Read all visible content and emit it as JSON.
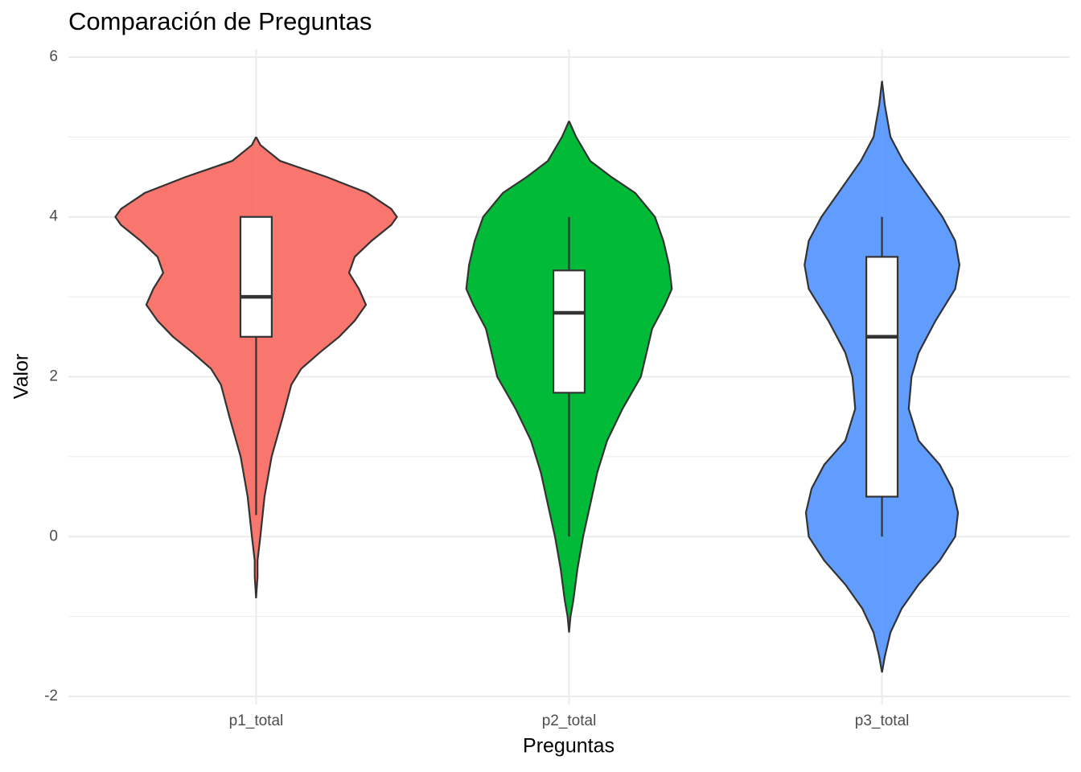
{
  "chart_data": {
    "type": "violin",
    "title": "Comparación de Preguntas",
    "x_label": "Preguntas",
    "y_label": "Valor",
    "categories": [
      "p1_total",
      "p2_total",
      "p3_total"
    ],
    "ylim": [
      -2.1,
      6.1
    ],
    "yticks": [
      -2,
      0,
      2,
      4,
      6
    ],
    "y_minor_grid": [
      -1,
      1,
      3,
      5
    ],
    "grid": true,
    "groups": [
      {
        "color": "#F8766D",
        "density_y": [
          5.0,
          4.9,
          4.7,
          4.5,
          4.3,
          4.1,
          4.0,
          3.9,
          3.7,
          3.5,
          3.3,
          3.1,
          2.9,
          2.7,
          2.5,
          2.3,
          2.1,
          1.9,
          1.5,
          1.0,
          0.5,
          0,
          -0.3,
          -0.5,
          -0.77
        ],
        "density": [
          0,
          0.03,
          0.17,
          0.5,
          0.79,
          0.96,
          1,
          0.96,
          0.82,
          0.7,
          0.66,
          0.73,
          0.78,
          0.7,
          0.59,
          0.45,
          0.32,
          0.25,
          0.19,
          0.11,
          0.06,
          0.03,
          0.01,
          0.01,
          0
        ],
        "box": {
          "min": 0.27,
          "q1": 2.5,
          "median": 3,
          "q3": 4,
          "max": 4
        }
      },
      {
        "color": "#00BA38",
        "density_y": [
          5.2,
          5.0,
          4.7,
          4.5,
          4.3,
          4.0,
          3.7,
          3.4,
          3.1,
          2.9,
          2.6,
          2.3,
          2.0,
          1.6,
          1.2,
          0.8,
          0.4,
          0,
          -0.4,
          -0.8,
          -1.0,
          -1.2
        ],
        "density": [
          0,
          0.05,
          0.15,
          0.3,
          0.47,
          0.61,
          0.67,
          0.71,
          0.73,
          0.68,
          0.59,
          0.55,
          0.51,
          0.38,
          0.27,
          0.2,
          0.15,
          0.1,
          0.06,
          0.03,
          0.01,
          0
        ],
        "box": {
          "min": 0,
          "q1": 1.8,
          "median": 2.8,
          "q3": 3.33,
          "max": 4
        }
      },
      {
        "color": "#619CFF",
        "density_y": [
          5.7,
          5.4,
          5.0,
          4.7,
          4.4,
          4.0,
          3.7,
          3.4,
          3.1,
          2.7,
          2.3,
          2.0,
          1.6,
          1.2,
          0.9,
          0.6,
          0.3,
          0,
          -0.3,
          -0.6,
          -0.9,
          -1.2,
          -1.5,
          -1.7
        ],
        "density": [
          0,
          0.02,
          0.06,
          0.15,
          0.27,
          0.43,
          0.52,
          0.55,
          0.52,
          0.38,
          0.26,
          0.21,
          0.19,
          0.26,
          0.41,
          0.5,
          0.54,
          0.52,
          0.41,
          0.26,
          0.14,
          0.06,
          0.02,
          0
        ],
        "box": {
          "min": 0,
          "q1": 0.5,
          "median": 2.5,
          "q3": 3.5,
          "max": 4
        }
      }
    ]
  }
}
